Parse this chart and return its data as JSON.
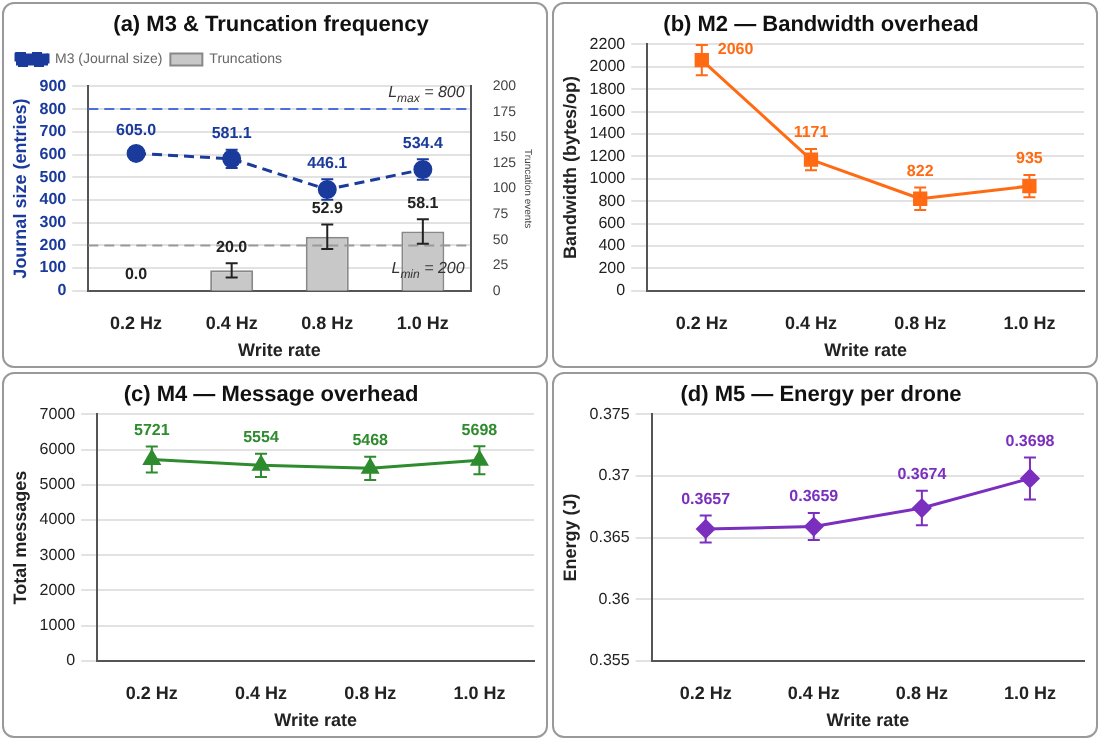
{
  "chart_data": [
    {
      "type": "line",
      "title": "(a) M3 & Truncation frequency",
      "xlabel": "Write rate",
      "ylabel": "Journal size (entries)",
      "y2label": "Truncation events",
      "categories": [
        "0.2 Hz",
        "0.4 Hz",
        "0.8 Hz",
        "1.0 Hz"
      ],
      "ylim": [
        0,
        900
      ],
      "yticks": [
        0,
        100,
        200,
        300,
        400,
        500,
        600,
        700,
        800,
        900
      ],
      "y2lim": [
        0,
        200
      ],
      "y2ticks": [
        0,
        25,
        50,
        75,
        100,
        125,
        150,
        175,
        200
      ],
      "grid": "y",
      "legend": "top left",
      "series": [
        {
          "name": "M3 (Journal size)",
          "color": "#1a3a9c",
          "values": [
            605.0,
            581.1,
            446.1,
            534.4
          ],
          "errors": [
            28,
            40,
            45,
            45
          ],
          "value_labels": [
            "605.0",
            "581.1",
            "446.1",
            "534.4"
          ],
          "marker": "circle",
          "line_style": "dashed"
        },
        {
          "name": "Truncations",
          "type": "bar",
          "axis": "y2",
          "color": "#c8c8c8",
          "values": [
            0.0,
            20.0,
            52.9,
            58.1
          ],
          "errors": [
            null,
            7,
            12,
            12
          ],
          "value_labels": [
            "0.0",
            "20.0",
            "52.9",
            "58.1"
          ]
        }
      ],
      "ref_lines": [
        {
          "axis": "y",
          "value": 800,
          "label": "L$_{max}$ = 800",
          "color": "#4a6fd8",
          "line_style": "dashed"
        },
        {
          "axis": "y",
          "value": 200,
          "label": "L$_{min}$ = 200",
          "color": "#999999",
          "line_style": "dashed"
        }
      ]
    },
    {
      "type": "line",
      "title": "(b) M2 — Bandwidth overhead",
      "xlabel": "Write rate",
      "ylabel": "Bandwidth (bytes/op)",
      "categories": [
        "0.2 Hz",
        "0.4 Hz",
        "0.8 Hz",
        "1.0 Hz"
      ],
      "ylim": [
        0,
        2200
      ],
      "yticks": [
        0,
        200,
        400,
        600,
        800,
        1000,
        1200,
        1400,
        1600,
        1800,
        2000,
        2200
      ],
      "grid": "y",
      "marker": "square",
      "line_style": "solid",
      "series": [
        {
          "color": "#ff6a13",
          "values": [
            2060,
            1171,
            822,
            935
          ],
          "errors": [
            135,
            95,
            100,
            100
          ],
          "value_labels": [
            "2060",
            "1171",
            "822",
            "935"
          ]
        }
      ]
    },
    {
      "type": "line",
      "title": "(c) M4 — Message overhead",
      "xlabel": "Write rate",
      "ylabel": "Total messages",
      "categories": [
        "0.2 Hz",
        "0.4 Hz",
        "0.8 Hz",
        "1.0 Hz"
      ],
      "ylim": [
        0,
        7000
      ],
      "yticks": [
        0,
        1000,
        2000,
        3000,
        4000,
        5000,
        6000,
        7000
      ],
      "grid": "y",
      "marker": "triangle",
      "line_style": "solid",
      "series": [
        {
          "color": "#2e8b2e",
          "values": [
            5721,
            5554,
            5468,
            5698
          ],
          "errors": [
            370,
            330,
            330,
            400
          ],
          "value_labels": [
            "5721",
            "5554",
            "5468",
            "5698"
          ]
        }
      ]
    },
    {
      "type": "line",
      "title": "(d) M5 — Energy per drone",
      "xlabel": "Write rate",
      "ylabel": "Energy (J)",
      "categories": [
        "0.2 Hz",
        "0.4 Hz",
        "0.8 Hz",
        "1.0 Hz"
      ],
      "ylim": [
        0.355,
        0.375
      ],
      "yticks": [
        0.355,
        0.36,
        0.365,
        0.37,
        0.375
      ],
      "grid": "y",
      "marker": "diamond",
      "line_style": "solid",
      "series": [
        {
          "color": "#7b2fbe",
          "values": [
            0.3657,
            0.3659,
            0.3674,
            0.3698
          ],
          "errors": [
            0.0011,
            0.0011,
            0.0014,
            0.0017
          ],
          "value_labels": [
            "0.3657",
            "0.3659",
            "0.3674",
            "0.3698"
          ]
        }
      ]
    }
  ]
}
